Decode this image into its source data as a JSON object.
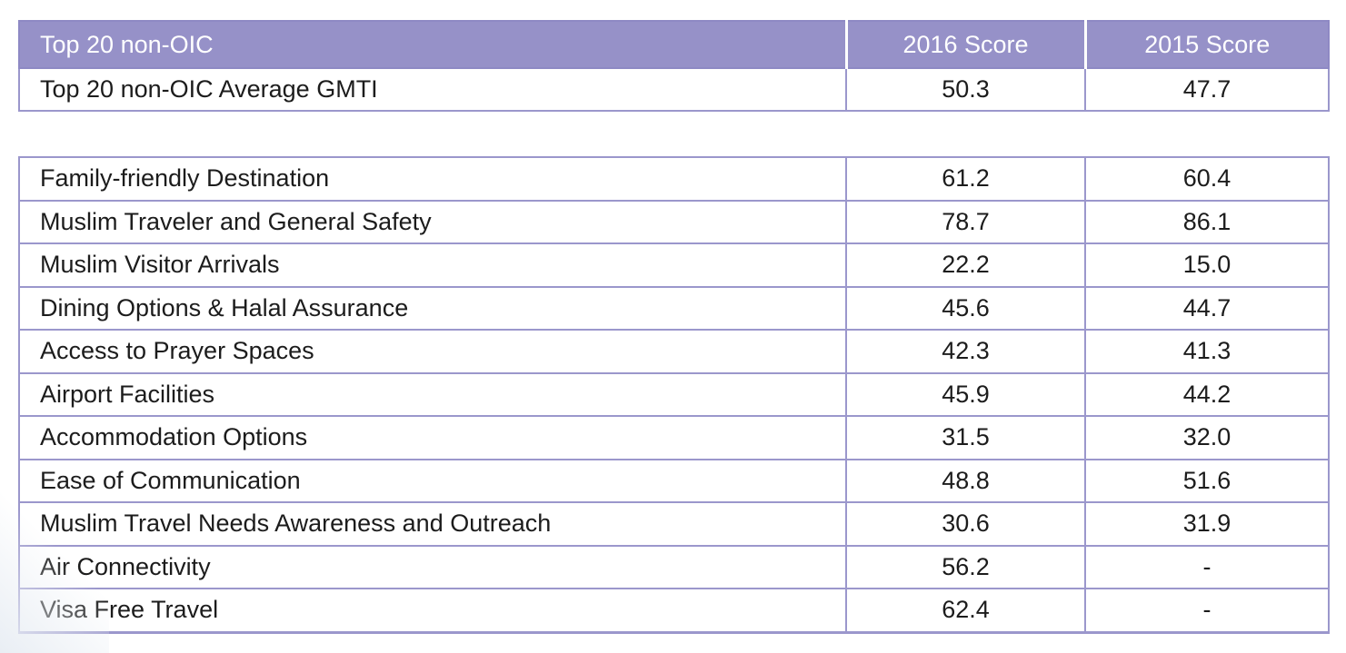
{
  "chart_data": {
    "type": "table",
    "header": {
      "label": "Top 20 non-OIC",
      "col_2016": "2016 Score",
      "col_2015": "2015 Score"
    },
    "summary": {
      "label": "Top 20 non-OIC Average GMTI",
      "score_2016": "50.3",
      "score_2015": "47.7"
    },
    "rows": [
      {
        "label": "Family-friendly Destination",
        "score_2016": "61.2",
        "score_2015": "60.4"
      },
      {
        "label": "Muslim Traveler and General Safety",
        "score_2016": "78.7",
        "score_2015": "86.1"
      },
      {
        "label": "Muslim Visitor Arrivals",
        "score_2016": "22.2",
        "score_2015": "15.0"
      },
      {
        "label": "Dining Options & Halal Assurance",
        "score_2016": "45.6",
        "score_2015": "44.7"
      },
      {
        "label": "Access to Prayer Spaces",
        "score_2016": "42.3",
        "score_2015": "41.3"
      },
      {
        "label": "Airport Facilities",
        "score_2016": "45.9",
        "score_2015": "44.2"
      },
      {
        "label": "Accommodation Options",
        "score_2016": "31.5",
        "score_2015": "32.0"
      },
      {
        "label": "Ease of Communication",
        "score_2016": "48.8",
        "score_2015": "51.6"
      },
      {
        "label": "Muslim Travel Needs Awareness and Outreach",
        "score_2016": "30.6",
        "score_2015": "31.9"
      },
      {
        "label": "Air Connectivity",
        "score_2016": "56.2",
        "score_2015": "-"
      },
      {
        "label": "Visa Free Travel",
        "score_2016": "62.4",
        "score_2015": "-"
      }
    ],
    "colors": {
      "header_bg": "#9691c8",
      "header_text": "#ffffff",
      "border": "#9b97cc",
      "text": "#1c1c1c"
    }
  }
}
